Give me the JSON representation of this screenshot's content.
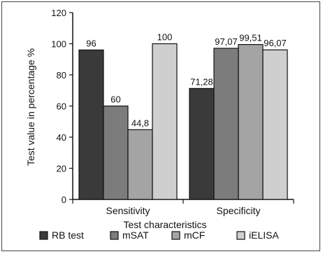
{
  "chart_data": {
    "type": "bar",
    "categories": [
      "Sensitivity",
      "Specificity"
    ],
    "series": [
      {
        "name": "RB test",
        "values": [
          96,
          71.28
        ],
        "labels": [
          "96",
          "71,28"
        ],
        "color": "#3a3a3a"
      },
      {
        "name": "mSAT",
        "values": [
          60,
          97.07
        ],
        "labels": [
          "60",
          "97,07"
        ],
        "color": "#7c7c7c"
      },
      {
        "name": "mCF",
        "values": [
          44.8,
          99.51
        ],
        "labels": [
          "44,8",
          "99,51"
        ],
        "color": "#a4a4a4"
      },
      {
        "name": "iELISA",
        "values": [
          100,
          96.07
        ],
        "labels": [
          "100",
          "96,07"
        ],
        "color": "#cfcfcf"
      }
    ],
    "xlabel": "Test characteristics",
    "ylabel": "Test value in percentage %",
    "ylim": [
      0,
      120
    ],
    "yticks": [
      "0",
      "20",
      "40",
      "60",
      "80",
      "100",
      "120"
    ],
    "grid": false,
    "legend_position": "bottom"
  }
}
